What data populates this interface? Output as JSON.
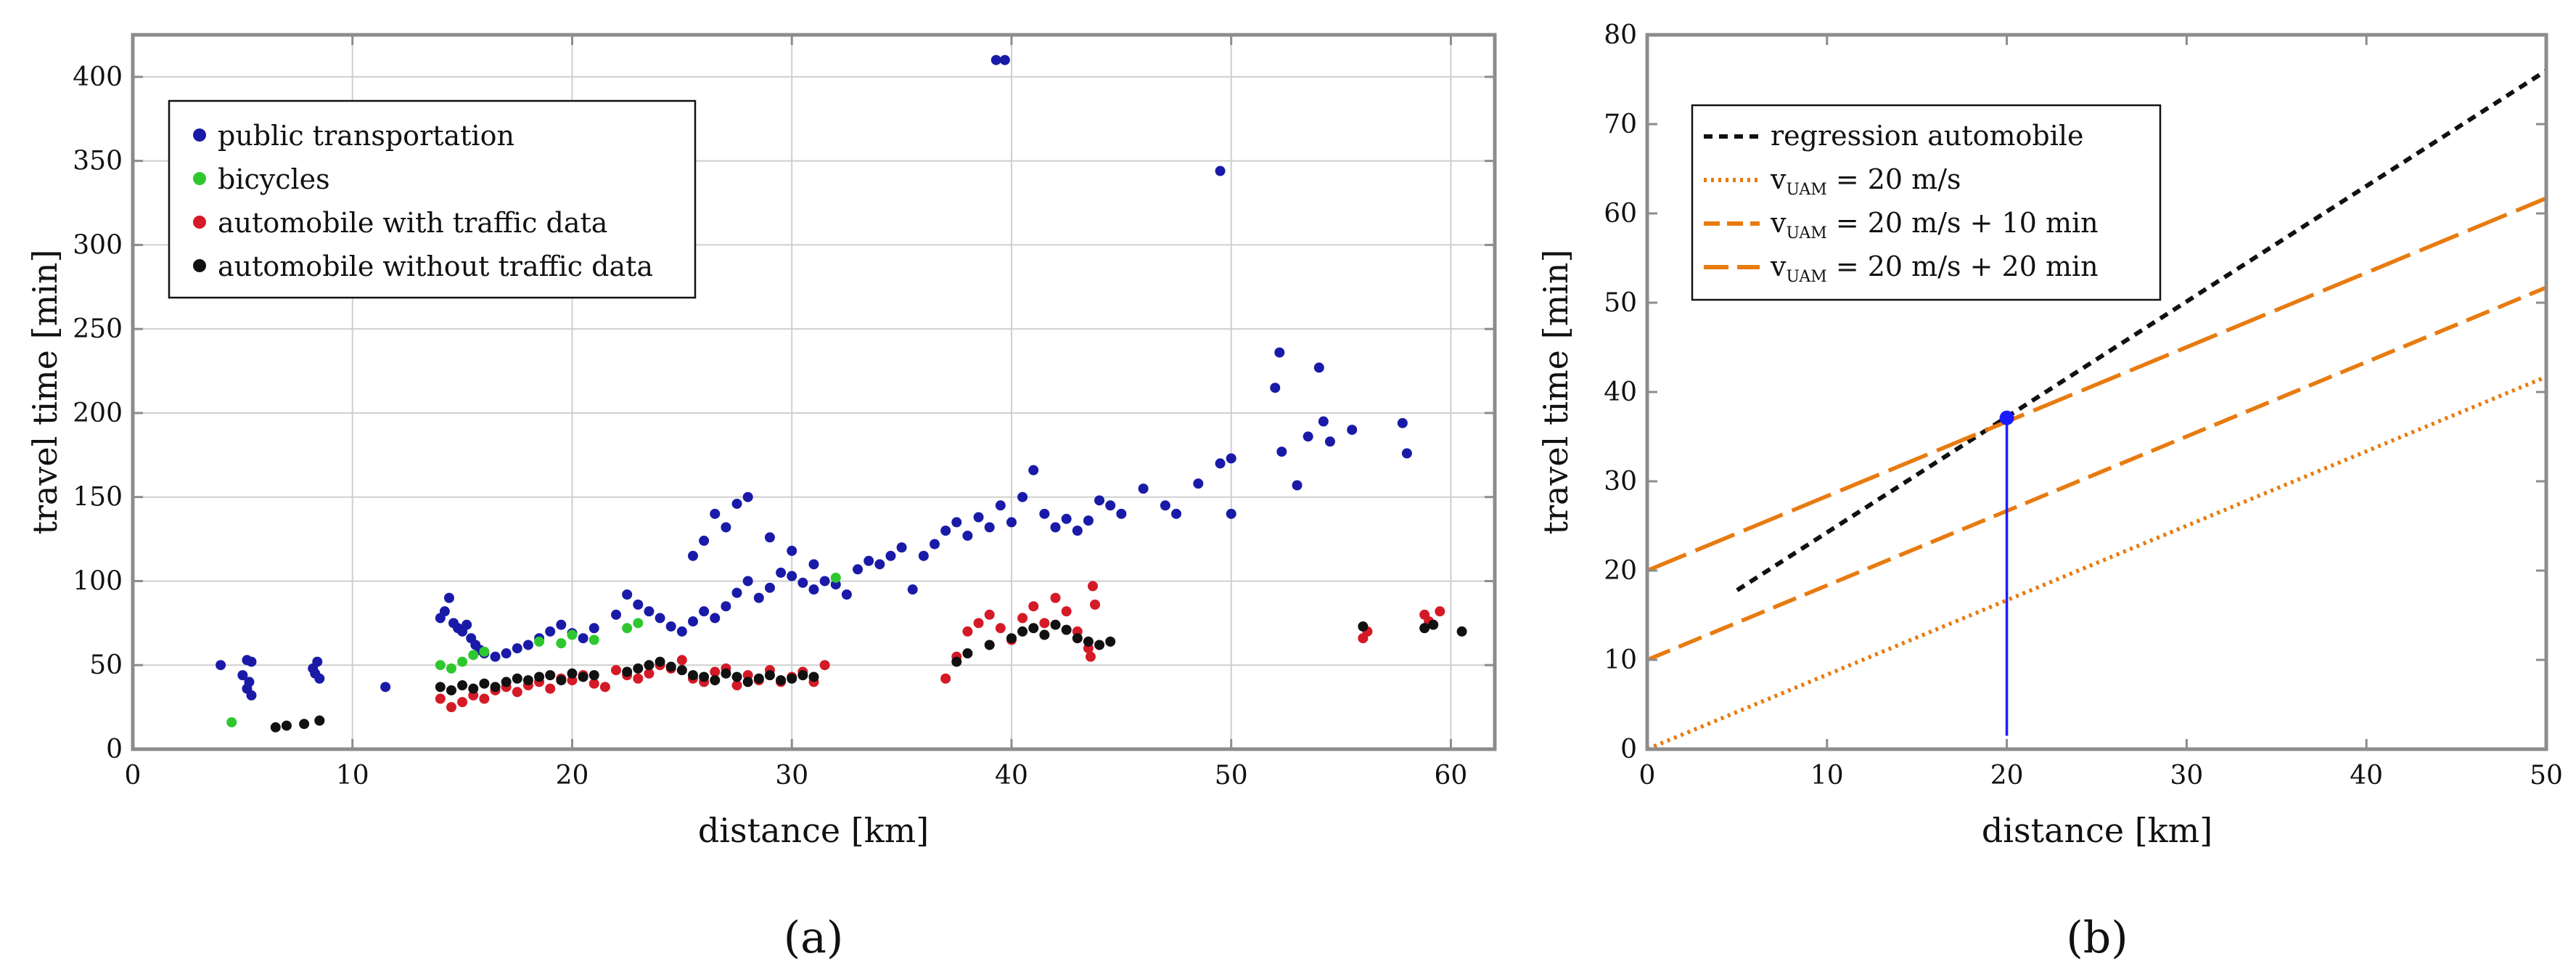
{
  "chart_data": [
    {
      "type": "scatter",
      "panel_label": "(a)",
      "xlabel": "distance [km]",
      "ylabel": "travel time [min]",
      "xlim": [
        0,
        62
      ],
      "ylim": [
        0,
        425
      ],
      "xticks": [
        0,
        10,
        20,
        30,
        40,
        50,
        60
      ],
      "yticks": [
        0,
        50,
        100,
        150,
        200,
        250,
        300,
        350,
        400
      ],
      "grid": true,
      "legend_position": "top-left",
      "series": [
        {
          "name": "public transportation",
          "color": "#1a1aa8",
          "points": [
            [
              4,
              50
            ],
            [
              5.2,
              53
            ],
            [
              5.4,
              52
            ],
            [
              5.3,
              40
            ],
            [
              5.2,
              36
            ],
            [
              5.4,
              32
            ],
            [
              5,
              44
            ],
            [
              8.2,
              48
            ],
            [
              8.4,
              52
            ],
            [
              8.3,
              45
            ],
            [
              8.5,
              42
            ],
            [
              11.5,
              37
            ],
            [
              14,
              78
            ],
            [
              14.2,
              82
            ],
            [
              14.4,
              90
            ],
            [
              14.6,
              75
            ],
            [
              14.8,
              72
            ],
            [
              15,
              70
            ],
            [
              15.2,
              74
            ],
            [
              15.4,
              66
            ],
            [
              15.6,
              62
            ],
            [
              15.8,
              59
            ],
            [
              16,
              57
            ],
            [
              16.5,
              55
            ],
            [
              17,
              57
            ],
            [
              17.5,
              60
            ],
            [
              18,
              62
            ],
            [
              18.5,
              66
            ],
            [
              19,
              70
            ],
            [
              19.5,
              74
            ],
            [
              20,
              69
            ],
            [
              20.5,
              66
            ],
            [
              21,
              72
            ],
            [
              22,
              80
            ],
            [
              22.5,
              92
            ],
            [
              23,
              86
            ],
            [
              23.5,
              82
            ],
            [
              24,
              78
            ],
            [
              24.5,
              73
            ],
            [
              25,
              70
            ],
            [
              25.5,
              76
            ],
            [
              26,
              82
            ],
            [
              26.5,
              78
            ],
            [
              27,
              85
            ],
            [
              27.5,
              93
            ],
            [
              28,
              100
            ],
            [
              28.5,
              90
            ],
            [
              29,
              96
            ],
            [
              29.5,
              105
            ],
            [
              30,
              103
            ],
            [
              30.5,
              99
            ],
            [
              31,
              95
            ],
            [
              31.5,
              100
            ],
            [
              32,
              98
            ],
            [
              32.5,
              92
            ],
            [
              33,
              107
            ],
            [
              33.5,
              112
            ],
            [
              34,
              110
            ],
            [
              34.5,
              115
            ],
            [
              35,
              120
            ],
            [
              35.5,
              95
            ],
            [
              25.5,
              115
            ],
            [
              26,
              124
            ],
            [
              26.5,
              140
            ],
            [
              27,
              132
            ],
            [
              27.5,
              146
            ],
            [
              28,
              150
            ],
            [
              29,
              126
            ],
            [
              30,
              118
            ],
            [
              31,
              110
            ],
            [
              36,
              115
            ],
            [
              36.5,
              122
            ],
            [
              37,
              130
            ],
            [
              37.5,
              135
            ],
            [
              38,
              127
            ],
            [
              38.5,
              138
            ],
            [
              39,
              132
            ],
            [
              39.5,
              145
            ],
            [
              40,
              135
            ],
            [
              40.5,
              150
            ],
            [
              41,
              166
            ],
            [
              41.5,
              140
            ],
            [
              42,
              132
            ],
            [
              42.5,
              137
            ],
            [
              43,
              130
            ],
            [
              43.5,
              136
            ],
            [
              44,
              148
            ],
            [
              44.5,
              145
            ],
            [
              45,
              140
            ],
            [
              46,
              155
            ],
            [
              47,
              145
            ],
            [
              47.5,
              140
            ],
            [
              48.5,
              158
            ],
            [
              49.5,
              170
            ],
            [
              50,
              173
            ],
            [
              50,
              140
            ],
            [
              52,
              215
            ],
            [
              52.2,
              236
            ],
            [
              52.3,
              177
            ],
            [
              53,
              157
            ],
            [
              53.5,
              186
            ],
            [
              54,
              227
            ],
            [
              54.2,
              195
            ],
            [
              54.5,
              183
            ],
            [
              55.5,
              190
            ],
            [
              57.8,
              194
            ],
            [
              58,
              176
            ],
            [
              39.3,
              410
            ],
            [
              39.7,
              410
            ],
            [
              49.5,
              344
            ]
          ]
        },
        {
          "name": "bicycles",
          "color": "#2ec82e",
          "points": [
            [
              4.5,
              16
            ],
            [
              14,
              50
            ],
            [
              14.5,
              48
            ],
            [
              15,
              52
            ],
            [
              15.5,
              56
            ],
            [
              16,
              58
            ],
            [
              18.5,
              64
            ],
            [
              19.5,
              63
            ],
            [
              20,
              68
            ],
            [
              21,
              65
            ],
            [
              22.5,
              72
            ],
            [
              23,
              75
            ],
            [
              32,
              102
            ]
          ]
        },
        {
          "name": "automobile with traffic data",
          "color": "#d41a26",
          "points": [
            [
              8.5,
              17
            ],
            [
              14,
              30
            ],
            [
              14.5,
              25
            ],
            [
              15,
              28
            ],
            [
              15.5,
              32
            ],
            [
              16,
              30
            ],
            [
              16.5,
              35
            ],
            [
              17,
              37
            ],
            [
              17.5,
              34
            ],
            [
              18,
              38
            ],
            [
              18.5,
              40
            ],
            [
              19,
              36
            ],
            [
              19.5,
              42
            ],
            [
              20,
              41
            ],
            [
              20.5,
              44
            ],
            [
              21,
              39
            ],
            [
              21.5,
              37
            ],
            [
              22,
              47
            ],
            [
              22.5,
              44
            ],
            [
              23,
              42
            ],
            [
              23.5,
              45
            ],
            [
              24,
              50
            ],
            [
              24.5,
              48
            ],
            [
              25,
              53
            ],
            [
              25.5,
              42
            ],
            [
              26,
              40
            ],
            [
              26.5,
              46
            ],
            [
              27,
              48
            ],
            [
              27.5,
              38
            ],
            [
              28,
              44
            ],
            [
              28.5,
              41
            ],
            [
              29,
              47
            ],
            [
              29.5,
              40
            ],
            [
              30,
              43
            ],
            [
              30.5,
              46
            ],
            [
              31,
              40
            ],
            [
              31.5,
              50
            ],
            [
              37,
              42
            ],
            [
              37.5,
              55
            ],
            [
              38,
              70
            ],
            [
              38.5,
              75
            ],
            [
              39,
              80
            ],
            [
              39.5,
              72
            ],
            [
              40,
              65
            ],
            [
              40.5,
              78
            ],
            [
              41,
              85
            ],
            [
              41.5,
              75
            ],
            [
              42,
              90
            ],
            [
              42.5,
              82
            ],
            [
              43,
              70
            ],
            [
              43.5,
              60
            ],
            [
              43.6,
              55
            ],
            [
              43.7,
              97
            ],
            [
              43.8,
              86
            ],
            [
              56,
              66
            ],
            [
              56.2,
              70
            ],
            [
              58.8,
              80
            ],
            [
              59,
              76
            ],
            [
              59.5,
              82
            ]
          ]
        },
        {
          "name": "automobile without traffic data",
          "color": "#111111",
          "points": [
            [
              6.5,
              13
            ],
            [
              7,
              14
            ],
            [
              7.8,
              15
            ],
            [
              8.5,
              17
            ],
            [
              14,
              37
            ],
            [
              14.5,
              35
            ],
            [
              15,
              38
            ],
            [
              15.5,
              36
            ],
            [
              16,
              39
            ],
            [
              16.5,
              37
            ],
            [
              17,
              40
            ],
            [
              17.5,
              42
            ],
            [
              18,
              41
            ],
            [
              18.5,
              43
            ],
            [
              19,
              44
            ],
            [
              19.5,
              41
            ],
            [
              20,
              45
            ],
            [
              20.5,
              43
            ],
            [
              21,
              44
            ],
            [
              22.5,
              46
            ],
            [
              23,
              48
            ],
            [
              23.5,
              50
            ],
            [
              24,
              52
            ],
            [
              24.5,
              49
            ],
            [
              25,
              47
            ],
            [
              25.5,
              44
            ],
            [
              26,
              43
            ],
            [
              26.5,
              41
            ],
            [
              27,
              45
            ],
            [
              27.5,
              43
            ],
            [
              28,
              40
            ],
            [
              28.5,
              42
            ],
            [
              29,
              44
            ],
            [
              29.5,
              41
            ],
            [
              30,
              42
            ],
            [
              30.5,
              44
            ],
            [
              31,
              43
            ],
            [
              37.5,
              52
            ],
            [
              38,
              57
            ],
            [
              39,
              62
            ],
            [
              40,
              66
            ],
            [
              40.5,
              70
            ],
            [
              41,
              72
            ],
            [
              41.5,
              68
            ],
            [
              42,
              74
            ],
            [
              42.5,
              71
            ],
            [
              43,
              66
            ],
            [
              43.5,
              64
            ],
            [
              44,
              62
            ],
            [
              44.5,
              64
            ],
            [
              56,
              73
            ],
            [
              58.8,
              72
            ],
            [
              59.2,
              74
            ],
            [
              60.5,
              70
            ]
          ]
        }
      ]
    },
    {
      "type": "line",
      "panel_label": "(b)",
      "xlabel": "distance [km]",
      "ylabel": "travel time [min]",
      "xlim": [
        0,
        50
      ],
      "ylim": [
        0,
        80
      ],
      "xticks": [
        0,
        10,
        20,
        30,
        40,
        50
      ],
      "yticks": [
        0,
        10,
        20,
        30,
        40,
        50,
        60,
        70,
        80
      ],
      "grid": false,
      "legend_position": "top-left",
      "series": [
        {
          "name_main": "regression automobile",
          "name_sub": "",
          "name_rest": "",
          "style": "dashed",
          "color": "#111111",
          "x": [
            5,
            50
          ],
          "y": [
            17.8,
            76
          ]
        },
        {
          "name_main": "v",
          "name_sub": "UAM",
          "name_rest": " = 20 m/s",
          "style": "dotted",
          "color": "#e87b10",
          "x": [
            0,
            50
          ],
          "y": [
            0,
            41.7
          ]
        },
        {
          "name_main": "v",
          "name_sub": "UAM",
          "name_rest": " = 20 m/s + 10 min",
          "style": "dash-long",
          "color": "#e87b10",
          "x": [
            0,
            50
          ],
          "y": [
            10,
            51.7
          ]
        },
        {
          "name_main": "v",
          "name_sub": "UAM",
          "name_rest": " = 20 m/s + 20 min",
          "style": "dash-longer",
          "color": "#e87b10",
          "x": [
            0,
            50
          ],
          "y": [
            20,
            61.7
          ]
        }
      ],
      "annotation": {
        "type": "vertical-marker",
        "color": "#1a1aff",
        "x": 20,
        "y": 37.1,
        "y_bottom": 1.5
      }
    }
  ]
}
